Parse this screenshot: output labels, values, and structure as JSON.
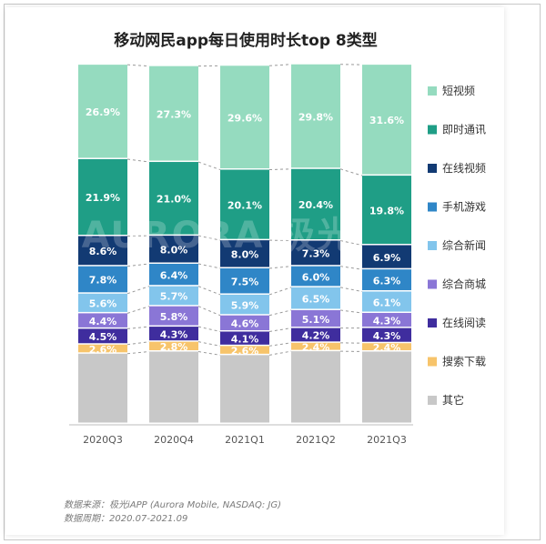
{
  "chart_data": {
    "type": "bar",
    "stacked": true,
    "percent": true,
    "title": "移动网民app每日使用时长top  8类型",
    "categories": [
      "2020Q3",
      "2020Q4",
      "2021Q1",
      "2021Q2",
      "2021Q3"
    ],
    "series": [
      {
        "name": "其它",
        "color": "#c8c8c8",
        "values": [
          20.0,
          20.6,
          19.6,
          20.7,
          20.6
        ],
        "show_labels": false
      },
      {
        "name": "搜索下载",
        "color": "#f7c46b",
        "values": [
          2.6,
          2.8,
          2.6,
          2.4,
          2.4
        ]
      },
      {
        "name": "在线阅读",
        "color": "#3f2d9e",
        "values": [
          4.5,
          4.3,
          4.1,
          4.2,
          4.3
        ]
      },
      {
        "name": "综合商城",
        "color": "#8a76d6",
        "values": [
          4.4,
          5.8,
          4.6,
          5.1,
          4.3
        ]
      },
      {
        "name": "综合新闻",
        "color": "#82c5ec",
        "values": [
          5.6,
          5.7,
          5.9,
          6.5,
          6.1
        ]
      },
      {
        "name": "手机游戏",
        "color": "#2f86c7",
        "values": [
          7.8,
          6.4,
          7.5,
          6.0,
          6.3
        ]
      },
      {
        "name": "在线视频",
        "color": "#123a73",
        "values": [
          8.6,
          8.0,
          8.0,
          7.3,
          6.9
        ]
      },
      {
        "name": "即时通讯",
        "color": "#1f9e86",
        "values": [
          21.9,
          21.0,
          20.1,
          20.4,
          19.8
        ]
      },
      {
        "name": "短视频",
        "color": "#95dbbf",
        "values": [
          26.9,
          27.3,
          29.6,
          29.8,
          31.6
        ]
      }
    ],
    "legend_order": [
      "短视频",
      "即时通讯",
      "在线视频",
      "手机游戏",
      "综合新闻",
      "综合商城",
      "在线阅读",
      "搜索下载",
      "其它"
    ],
    "legend_position": "right",
    "ylim": [
      0,
      100
    ],
    "watermark": "AURORA 极光"
  },
  "source": {
    "label1": "数据来源：",
    "value1": "极光iAPP (Aurora Mobile, NASDAQ: JG)",
    "label2": "数据周期：",
    "value2": "2020.07-2021.09"
  }
}
